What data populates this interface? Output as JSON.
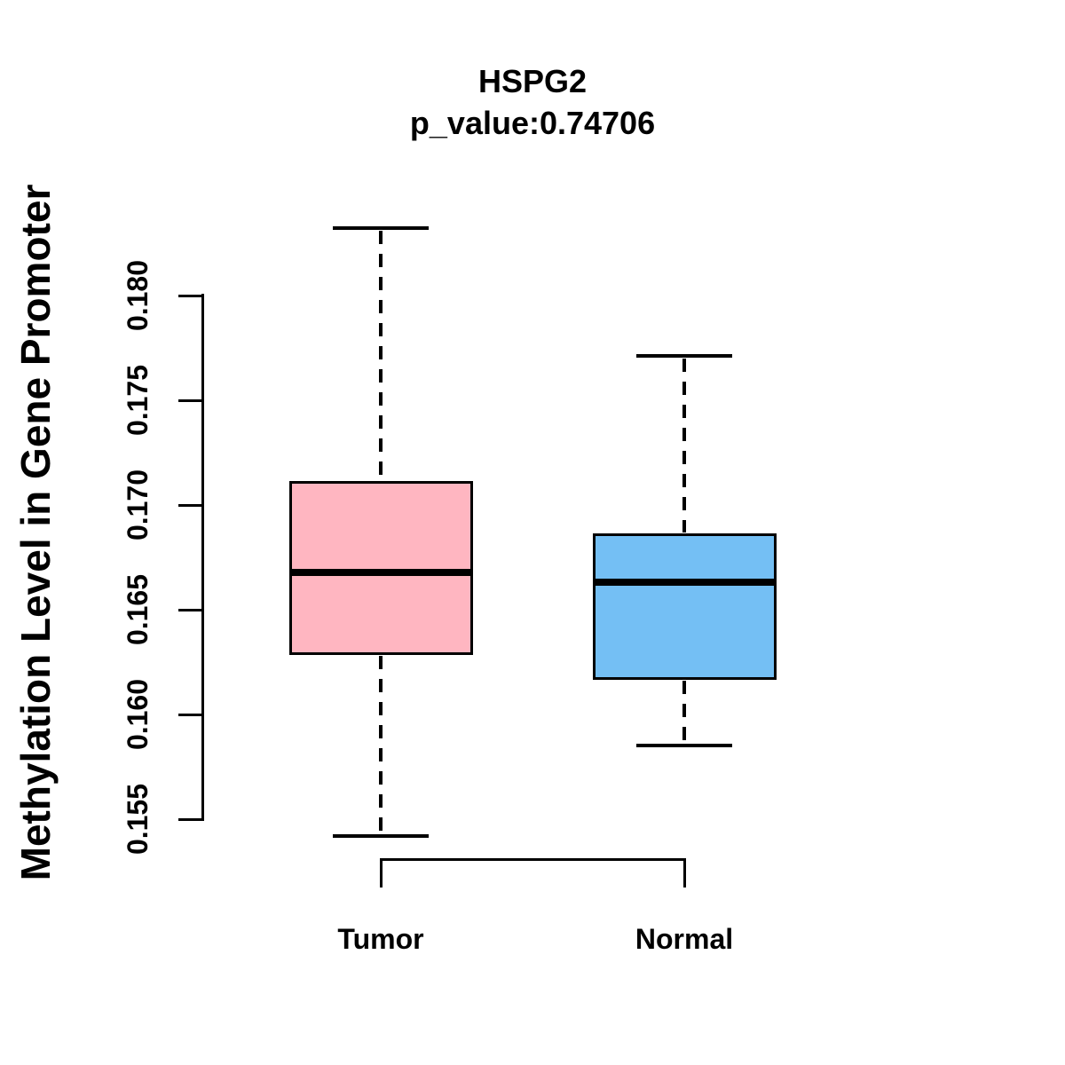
{
  "title": "HSPG2",
  "subtitle": "p_value:0.74706",
  "chart_data": {
    "type": "boxplot",
    "title": "HSPG2",
    "subtitle": "p_value:0.74706",
    "ylabel": "Methylation Level in Gene Promoter",
    "xlabel": "",
    "ylim": [
      0.155,
      0.18
    ],
    "yticks": [
      "0.155",
      "0.160",
      "0.165",
      "0.170",
      "0.175",
      "0.180"
    ],
    "categories": [
      "Tumor",
      "Normal"
    ],
    "series": [
      {
        "name": "Tumor",
        "fill_color": "#FFB6C1",
        "whisker_low": 0.1542,
        "q1": 0.1629,
        "median": 0.1668,
        "q3": 0.1711,
        "whisker_high": 0.1832
      },
      {
        "name": "Normal",
        "fill_color": "#74BFF4",
        "whisker_low": 0.1585,
        "q1": 0.1617,
        "median": 0.1663,
        "q3": 0.1686,
        "whisker_high": 0.1771
      }
    ],
    "annotations": {
      "comparison_bracket": {
        "from": "Tumor",
        "to": "Normal"
      }
    },
    "grid": false,
    "legend": false,
    "line_color": "#000000",
    "background": "#FFFFFF"
  }
}
